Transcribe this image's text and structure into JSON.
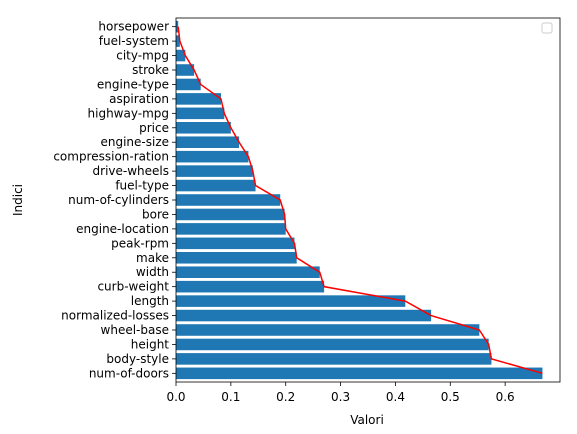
{
  "chart_data": {
    "type": "bar",
    "orientation": "horizontal",
    "xlabel": "Valori",
    "ylabel": "Indici",
    "xlim": [
      0,
      0.7
    ],
    "xticks": [
      "0.0",
      "0.1",
      "0.2",
      "0.3",
      "0.4",
      "0.5",
      "0.6"
    ],
    "grid": false,
    "legend": {
      "placement": "top-right",
      "entries": []
    },
    "bar_color": "#1f77b4",
    "line_color": "#ff0000",
    "categories": [
      "num-of-doors",
      "body-style",
      "height",
      "wheel-base",
      "normalized-losses",
      "length",
      "curb-weight",
      "width",
      "make",
      "peak-rpm",
      "engine-location",
      "bore",
      "num-of-cylinders",
      "fuel-type",
      "drive-wheels",
      "compression-ration",
      "engine-size",
      "price",
      "highway-mpg",
      "aspiration",
      "engine-type",
      "stroke",
      "city-mpg",
      "fuel-system",
      "horsepower"
    ],
    "values": [
      0.668,
      0.575,
      0.57,
      0.553,
      0.465,
      0.418,
      0.27,
      0.262,
      0.22,
      0.216,
      0.2,
      0.198,
      0.19,
      0.145,
      0.14,
      0.132,
      0.115,
      0.1,
      0.088,
      0.082,
      0.045,
      0.033,
      0.017,
      0.007,
      0.004
    ]
  }
}
